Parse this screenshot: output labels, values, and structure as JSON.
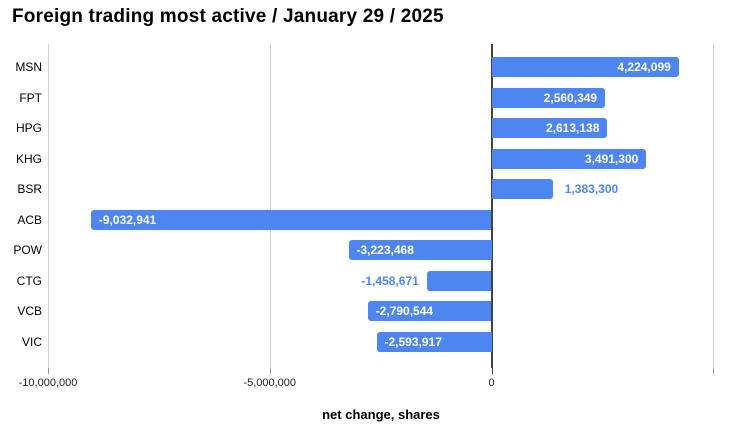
{
  "title": "Foreign trading most active / January 29 / 2025",
  "chart_data": {
    "type": "bar",
    "orientation": "horizontal",
    "title": "Foreign trading most active / January 29 / 2025",
    "categories": [
      "MSN",
      "FPT",
      "HPG",
      "KHG",
      "BSR",
      "ACB",
      "POW",
      "CTG",
      "VCB",
      "VIC"
    ],
    "values": [
      4224099,
      2560349,
      2613138,
      3491300,
      1383300,
      -9032941,
      -3223468,
      -1458671,
      -2790544,
      -2593917
    ],
    "value_labels": [
      "4,224,099",
      "2,560,349",
      "2,613,138",
      "3,491,300",
      "1,383,300",
      "-9,032,941",
      "-3,223,468",
      "-1,458,671",
      "-2,790,544",
      "-2,593,917"
    ],
    "xlabel": "net change, shares",
    "ylabel": "",
    "xlim": [
      -10000000,
      5350000
    ],
    "x_ticks": [
      {
        "value": -10000000,
        "label": "-10,000,000"
      },
      {
        "value": -5000000,
        "label": "-5,000,000"
      },
      {
        "value": 0,
        "label": "0"
      },
      {
        "value": 5000000,
        "label": ""
      }
    ],
    "grid": true,
    "legend": false
  },
  "colors": {
    "background": "#ffffff",
    "bar": "#4d86f0",
    "label_inside": "#ffffff",
    "label_outside": "#4d86f0",
    "gridline": "#d2d2d2",
    "tick": "#9a9a9a",
    "zero_line": "#424242",
    "text": "#000000"
  }
}
